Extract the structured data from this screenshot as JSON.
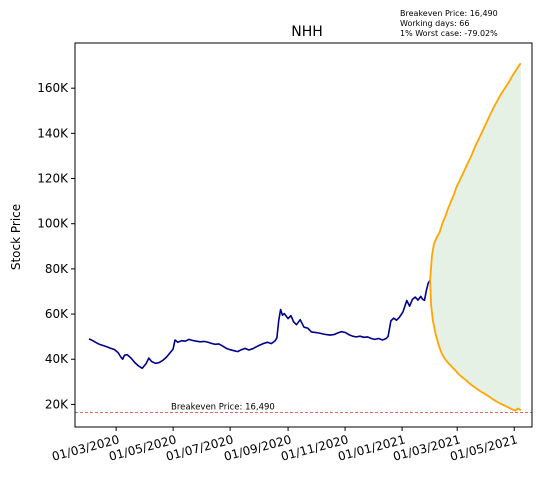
{
  "chart_data": {
    "type": "line",
    "title": "NHH",
    "ylabel": "Stock Price",
    "xlabel": "",
    "ylim": [
      10000,
      180000
    ],
    "xlim": [
      "2020-01-17",
      "2021-05-20"
    ],
    "y_ticks": [
      20000,
      40000,
      60000,
      80000,
      100000,
      120000,
      140000,
      160000
    ],
    "y_tick_labels": [
      "20K",
      "40K",
      "60K",
      "80K",
      "100K",
      "120K",
      "140K",
      "160K"
    ],
    "x_ticks": [
      "2020-03-01",
      "2020-05-01",
      "2020-07-01",
      "2020-09-01",
      "2020-11-01",
      "2021-01-01",
      "2021-03-01",
      "2021-05-01"
    ],
    "x_tick_labels": [
      "01/03/2020",
      "01/05/2020",
      "01/07/2020",
      "01/09/2020",
      "01/11/2020",
      "01/01/2021",
      "01/03/2021",
      "01/05/2021"
    ],
    "grid": false,
    "annotations": {
      "lines": [
        "Breakeven Price: 16,490",
        "Working days: 66",
        "1% Worst case: -79.02%"
      ],
      "breakeven_label": "Breakeven Price: 16,490"
    },
    "breakeven": 16490,
    "series": [
      {
        "kind": "history",
        "color": "#00008b",
        "points": [
          [
            "2020-02-01",
            49000
          ],
          [
            "2020-02-05",
            48200
          ],
          [
            "2020-02-08",
            47500
          ],
          [
            "2020-02-12",
            46600
          ],
          [
            "2020-02-16",
            46100
          ],
          [
            "2020-02-20",
            45500
          ],
          [
            "2020-02-24",
            44900
          ],
          [
            "2020-02-28",
            44300
          ],
          [
            "2020-03-03",
            43000
          ],
          [
            "2020-03-06",
            41000
          ],
          [
            "2020-03-08",
            40000
          ],
          [
            "2020-03-10",
            41800
          ],
          [
            "2020-03-13",
            42000
          ],
          [
            "2020-03-17",
            40500
          ],
          [
            "2020-03-21",
            38500
          ],
          [
            "2020-03-25",
            37000
          ],
          [
            "2020-03-29",
            36000
          ],
          [
            "2020-04-02",
            38000
          ],
          [
            "2020-04-05",
            40500
          ],
          [
            "2020-04-08",
            39000
          ],
          [
            "2020-04-12",
            38200
          ],
          [
            "2020-04-16",
            38500
          ],
          [
            "2020-04-20",
            39500
          ],
          [
            "2020-04-24",
            41000
          ],
          [
            "2020-04-28",
            43000
          ],
          [
            "2020-05-01",
            44500
          ],
          [
            "2020-05-03",
            48500
          ],
          [
            "2020-05-06",
            47500
          ],
          [
            "2020-05-10",
            48200
          ],
          [
            "2020-05-14",
            48000
          ],
          [
            "2020-05-18",
            48800
          ],
          [
            "2020-05-22",
            48300
          ],
          [
            "2020-05-26",
            48000
          ],
          [
            "2020-05-30",
            47700
          ],
          [
            "2020-06-03",
            47900
          ],
          [
            "2020-06-07",
            47600
          ],
          [
            "2020-06-11",
            47000
          ],
          [
            "2020-06-15",
            46600
          ],
          [
            "2020-06-19",
            46800
          ],
          [
            "2020-06-23",
            45800
          ],
          [
            "2020-06-27",
            44800
          ],
          [
            "2020-07-01",
            44200
          ],
          [
            "2020-07-05",
            43800
          ],
          [
            "2020-07-09",
            43400
          ],
          [
            "2020-07-13",
            44200
          ],
          [
            "2020-07-17",
            44800
          ],
          [
            "2020-07-21",
            44100
          ],
          [
            "2020-07-25",
            44600
          ],
          [
            "2020-07-29",
            45500
          ],
          [
            "2020-08-02",
            46300
          ],
          [
            "2020-08-06",
            47000
          ],
          [
            "2020-08-10",
            47500
          ],
          [
            "2020-08-14",
            46900
          ],
          [
            "2020-08-18",
            48100
          ],
          [
            "2020-08-20",
            49500
          ],
          [
            "2020-08-22",
            57000
          ],
          [
            "2020-08-24",
            62000
          ],
          [
            "2020-08-26",
            59500
          ],
          [
            "2020-08-28",
            60200
          ],
          [
            "2020-09-01",
            58000
          ],
          [
            "2020-09-04",
            59300
          ],
          [
            "2020-09-07",
            56500
          ],
          [
            "2020-09-10",
            55300
          ],
          [
            "2020-09-14",
            57500
          ],
          [
            "2020-09-18",
            54200
          ],
          [
            "2020-09-22",
            53800
          ],
          [
            "2020-09-26",
            52100
          ],
          [
            "2020-09-30",
            51900
          ],
          [
            "2020-10-04",
            51600
          ],
          [
            "2020-10-08",
            51200
          ],
          [
            "2020-10-12",
            50900
          ],
          [
            "2020-10-16",
            50700
          ],
          [
            "2020-10-20",
            50900
          ],
          [
            "2020-10-24",
            51600
          ],
          [
            "2020-10-28",
            52200
          ],
          [
            "2020-11-01",
            51900
          ],
          [
            "2020-11-05",
            50900
          ],
          [
            "2020-11-09",
            50200
          ],
          [
            "2020-11-13",
            49900
          ],
          [
            "2020-11-17",
            50200
          ],
          [
            "2020-11-21",
            49700
          ],
          [
            "2020-11-25",
            49900
          ],
          [
            "2020-11-29",
            49200
          ],
          [
            "2020-12-03",
            48800
          ],
          [
            "2020-12-07",
            49200
          ],
          [
            "2020-12-11",
            48500
          ],
          [
            "2020-12-15",
            49200
          ],
          [
            "2020-12-17",
            50100
          ],
          [
            "2020-12-20",
            57000
          ],
          [
            "2020-12-23",
            58200
          ],
          [
            "2020-12-26",
            57300
          ],
          [
            "2020-12-29",
            58500
          ],
          [
            "2021-01-02",
            61000
          ],
          [
            "2021-01-06",
            66000
          ],
          [
            "2021-01-09",
            63500
          ],
          [
            "2021-01-12",
            66500
          ],
          [
            "2021-01-15",
            67500
          ],
          [
            "2021-01-18",
            66200
          ],
          [
            "2021-01-21",
            67800
          ],
          [
            "2021-01-23",
            66500
          ],
          [
            "2021-01-25",
            66100
          ],
          [
            "2021-01-27",
            70500
          ],
          [
            "2021-01-29",
            73800
          ],
          [
            "2021-01-31",
            75000
          ]
        ]
      },
      {
        "kind": "best_case",
        "color": "#ffa500",
        "points": [
          [
            "2021-01-31",
            75000
          ],
          [
            "2021-02-02",
            86000
          ],
          [
            "2021-02-04",
            91000
          ],
          [
            "2021-02-07",
            94000
          ],
          [
            "2021-02-10",
            96000
          ],
          [
            "2021-02-13",
            100000
          ],
          [
            "2021-02-16",
            103000
          ],
          [
            "2021-02-19",
            106500
          ],
          [
            "2021-02-22",
            109500
          ],
          [
            "2021-02-25",
            112500
          ],
          [
            "2021-02-28",
            116000
          ],
          [
            "2021-03-04",
            119500
          ],
          [
            "2021-03-08",
            123000
          ],
          [
            "2021-03-12",
            126500
          ],
          [
            "2021-03-16",
            130000
          ],
          [
            "2021-03-20",
            134000
          ],
          [
            "2021-03-24",
            137500
          ],
          [
            "2021-03-28",
            141000
          ],
          [
            "2021-04-01",
            144500
          ],
          [
            "2021-04-05",
            148000
          ],
          [
            "2021-04-09",
            151500
          ],
          [
            "2021-04-13",
            154500
          ],
          [
            "2021-04-17",
            157500
          ],
          [
            "2021-04-21",
            160000
          ],
          [
            "2021-04-25",
            162500
          ],
          [
            "2021-04-29",
            165500
          ],
          [
            "2021-05-03",
            168000
          ],
          [
            "2021-05-06",
            170000
          ],
          [
            "2021-05-08",
            171000
          ]
        ]
      },
      {
        "kind": "worst_case",
        "color": "#ffa500",
        "points": [
          [
            "2021-01-31",
            75000
          ],
          [
            "2021-02-01",
            64000
          ],
          [
            "2021-02-03",
            57000
          ],
          [
            "2021-02-06",
            51000
          ],
          [
            "2021-02-09",
            46500
          ],
          [
            "2021-02-12",
            43000
          ],
          [
            "2021-02-15",
            40500
          ],
          [
            "2021-02-19",
            38500
          ],
          [
            "2021-02-23",
            36800
          ],
          [
            "2021-02-27",
            35000
          ],
          [
            "2021-03-03",
            33200
          ],
          [
            "2021-03-07",
            31800
          ],
          [
            "2021-03-11",
            30500
          ],
          [
            "2021-03-15",
            29000
          ],
          [
            "2021-03-19",
            27800
          ],
          [
            "2021-03-23",
            26600
          ],
          [
            "2021-03-27",
            25500
          ],
          [
            "2021-03-31",
            24500
          ],
          [
            "2021-04-04",
            23500
          ],
          [
            "2021-04-08",
            22300
          ],
          [
            "2021-04-12",
            21300
          ],
          [
            "2021-04-16",
            20400
          ],
          [
            "2021-04-20",
            19600
          ],
          [
            "2021-04-24",
            18800
          ],
          [
            "2021-04-28",
            18000
          ],
          [
            "2021-05-02",
            17200
          ],
          [
            "2021-05-05",
            18200
          ],
          [
            "2021-05-08",
            17400
          ]
        ]
      }
    ]
  }
}
